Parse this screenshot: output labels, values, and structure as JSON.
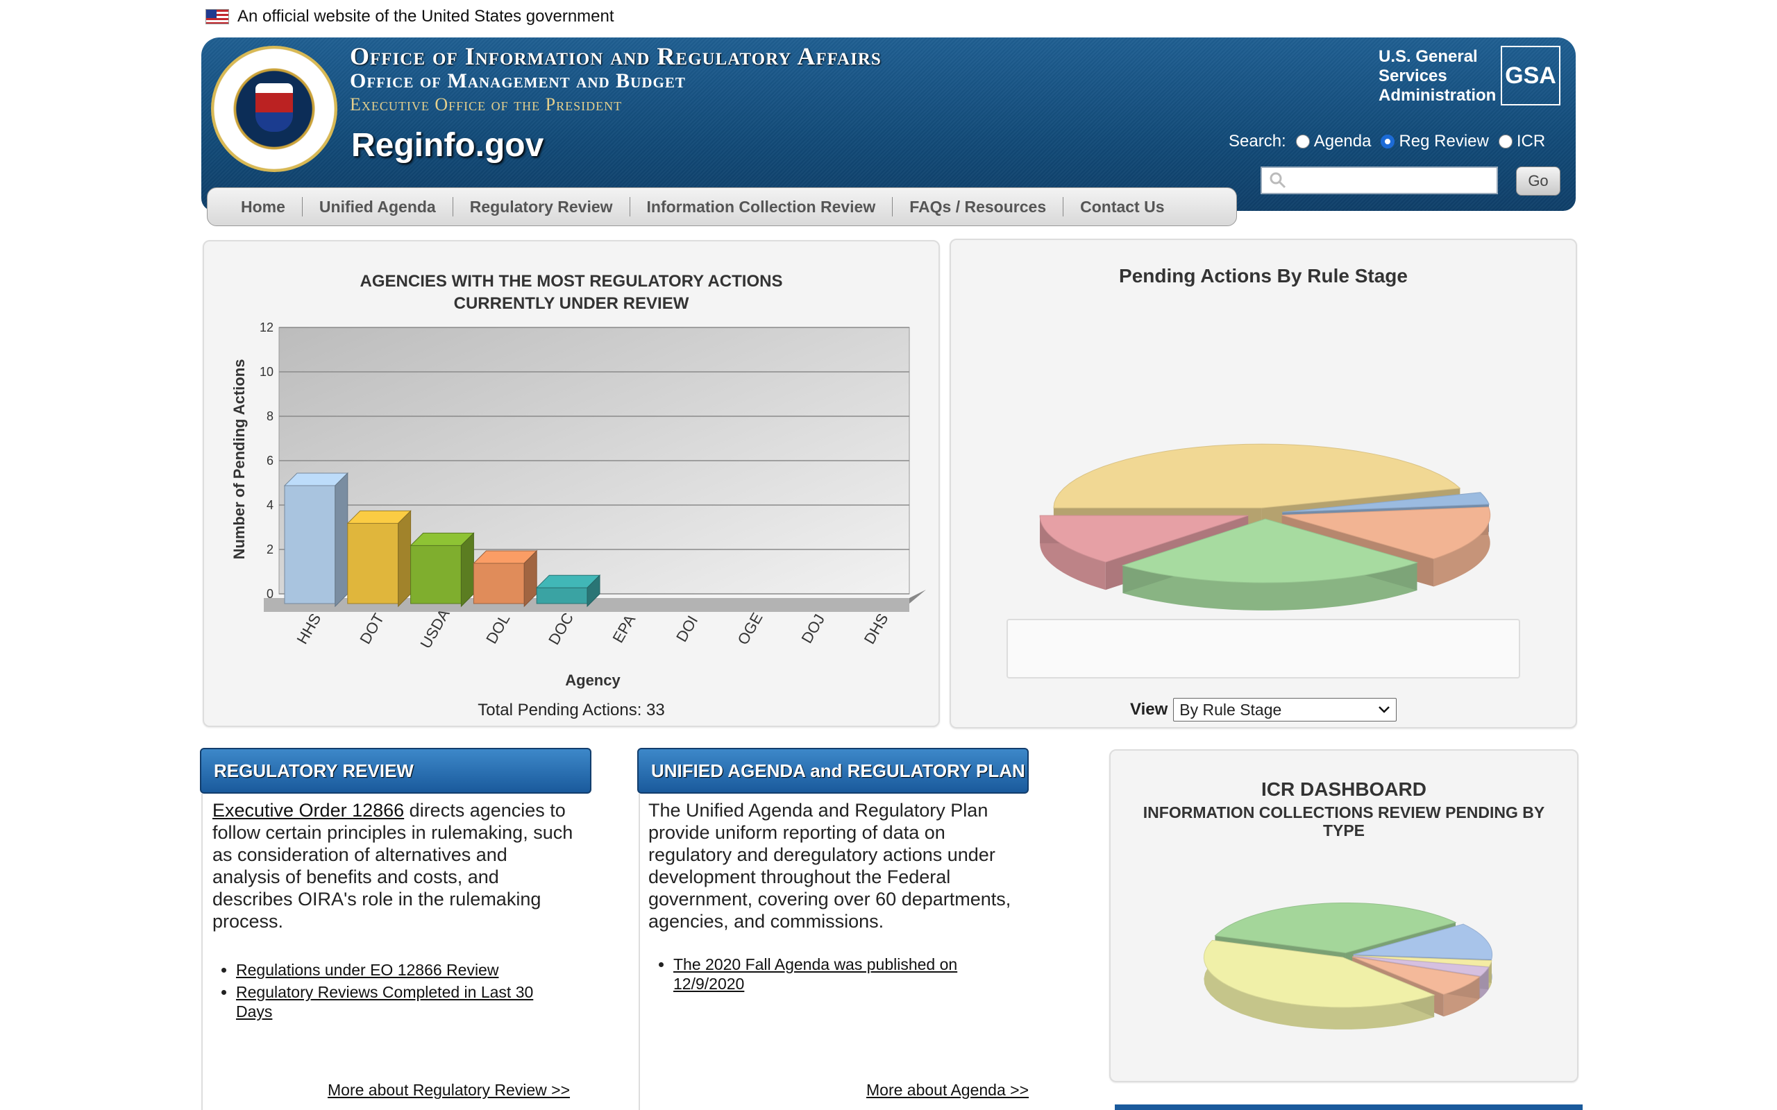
{
  "banner": {
    "text": "An official website of the United States government"
  },
  "header": {
    "title_line1": "Office of Information and Regulatory Affairs",
    "title_line2": "Office of Management and Budget",
    "title_line3": "Executive Office of the President",
    "site_name": "Reginfo.gov",
    "gsa_text": [
      "U.S. General",
      "Services",
      "Administration"
    ],
    "gsa_logo": "GSA",
    "search_label": "Search:",
    "search_options": [
      {
        "label": "Agenda",
        "selected": false
      },
      {
        "label": "Reg Review",
        "selected": true
      },
      {
        "label": "ICR",
        "selected": false
      }
    ],
    "search_placeholder": "",
    "go_label": "Go"
  },
  "nav": {
    "items": [
      "Home",
      "Unified Agenda",
      "Regulatory Review",
      "Information Collection Review",
      "FAQs / Resources",
      "Contact Us"
    ]
  },
  "bar_panel": {
    "title_line1": "AGENCIES WITH THE MOST REGULATORY ACTIONS",
    "title_line2": "CURRENTLY UNDER REVIEW",
    "total": "Total Pending Actions: 33"
  },
  "pie_panel": {
    "title": "Pending Actions By Rule Stage",
    "view_label": "View",
    "view_selected": "By Rule Stage"
  },
  "regulatory_review": {
    "heading": "REGULATORY REVIEW",
    "link_eo": "Executive Order 12866",
    "text": " directs agencies to follow certain principles in rulemaking, such as consideration of alternatives and analysis of benefits and costs, and describes OIRA's role in the rulemaking process.",
    "links": [
      "Regulations under EO 12866 Review",
      "Regulatory Reviews Completed in Last 30 Days"
    ],
    "more": "More about Regulatory Review  >>"
  },
  "unified_agenda": {
    "heading": "UNIFIED AGENDA and REGULATORY PLAN",
    "text": "The Unified Agenda and Regulatory Plan provide uniform reporting of data on regulatory and deregulatory actions under development throughout the Federal government, covering over 60 departments, agencies, and commissions.",
    "links": [
      "The 2020 Fall Agenda was published on 12/9/2020"
    ],
    "more": "More about Agenda  >>"
  },
  "icr": {
    "title": "ICR DASHBOARD",
    "subtitle": "INFORMATION COLLECTIONS REVIEW PENDING BY TYPE"
  },
  "chart_data": [
    {
      "type": "bar",
      "title": "AGENCIES WITH THE MOST REGULATORY ACTIONS CURRENTLY UNDER REVIEW",
      "xlabel": "Agency",
      "ylabel": "Number of Pending Actions",
      "categories": [
        "HHS",
        "DOT",
        "USDA",
        "DOL",
        "DOC",
        "EPA",
        "DOI",
        "OGE",
        "DOJ",
        "DHS"
      ],
      "values": [
        5,
        3.3,
        2.3,
        1.5,
        0.4,
        0,
        0,
        0,
        0,
        0
      ],
      "colors": [
        "#a9c4df",
        "#e0b63c",
        "#7fae2e",
        "#e08c5a",
        "#3aa3a3",
        "#999999",
        "#999999",
        "#999999",
        "#999999",
        "#999999"
      ],
      "ylim": [
        0,
        12
      ],
      "yticks": [
        0,
        2,
        4,
        6,
        8,
        10,
        12
      ],
      "grid": true
    },
    {
      "type": "pie",
      "title": "Pending Actions By Rule Stage",
      "slices": [
        {
          "value": 45,
          "color": "#f1d894"
        },
        {
          "value": 3,
          "color": "#9bbbe0"
        },
        {
          "value": 14,
          "color": "#f2b493"
        },
        {
          "value": 25,
          "color": "#a7dba0"
        },
        {
          "value": 13,
          "color": "#e6a0a5"
        }
      ]
    },
    {
      "type": "pie",
      "title": "ICR DASHBOARD",
      "slices": [
        {
          "value": 34,
          "color": "#a4d69a"
        },
        {
          "value": 12,
          "color": "#a8c4ea"
        },
        {
          "value": 2,
          "color": "#f4eca4"
        },
        {
          "value": 3,
          "color": "#d6c0e0"
        },
        {
          "value": 7,
          "color": "#f4b99a"
        },
        {
          "value": 42,
          "color": "#f0f0a8"
        }
      ]
    }
  ]
}
